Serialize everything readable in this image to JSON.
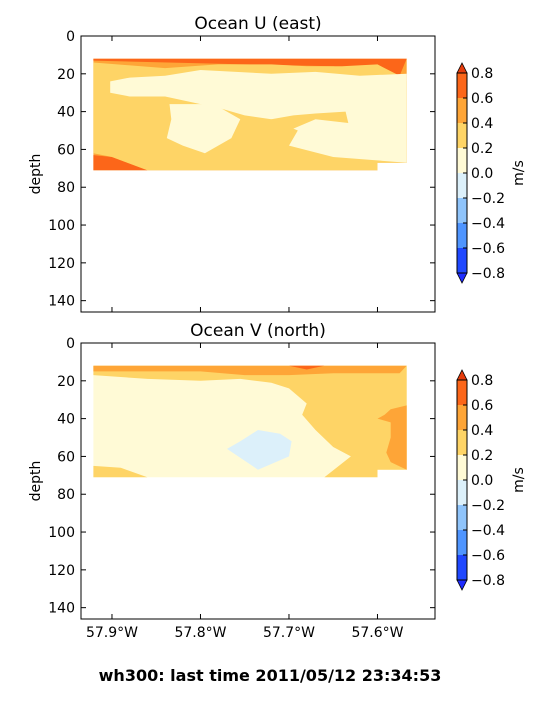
{
  "footer_title": "wh300: last time 2011/05/12 23:34:53",
  "chart_data": [
    {
      "type": "heatmap",
      "title": "Ocean U (east)",
      "ylabel": "depth",
      "colorbar_label": "m/s",
      "xlim": [
        -57.935,
        -57.535
      ],
      "ylim": [
        146,
        0
      ],
      "y_inverted": true,
      "x_ticks": [
        -57.9,
        -57.8,
        -57.7,
        -57.6
      ],
      "x_tick_labels": [
        "57.9°W",
        "57.8°W",
        "57.7°W",
        "57.6°W"
      ],
      "x_tick_labels_shown": false,
      "y_ticks": [
        0,
        20,
        40,
        60,
        80,
        100,
        120,
        140
      ],
      "y_tick_labels": [
        "0",
        "20",
        "40",
        "60",
        "80",
        "100",
        "120",
        "140"
      ],
      "data_extent": {
        "x": [
          -57.921,
          -57.567
        ],
        "depth": [
          12,
          71
        ]
      },
      "regions": [
        {
          "level": "0.4 to 0.6",
          "points": [
            [
              -57.921,
              12
            ],
            [
              -57.567,
              12
            ],
            [
              -57.567,
              67
            ],
            [
              -57.6,
              67
            ],
            [
              -57.6,
              71
            ],
            [
              -57.921,
              71
            ]
          ]
        },
        {
          "level": "0.6 to 0.8",
          "points": [
            [
              -57.921,
              12
            ],
            [
              -57.567,
              12
            ],
            [
              -57.575,
              21
            ],
            [
              -57.65,
              16
            ],
            [
              -57.75,
              15
            ],
            [
              -57.921,
              13
            ]
          ]
        },
        {
          "level": "0.6 to 0.8",
          "points": [
            [
              -57.921,
              63
            ],
            [
              -57.9,
              64
            ],
            [
              -57.86,
              71
            ],
            [
              -57.921,
              71
            ]
          ]
        },
        {
          "level": "0.2 to 0.4",
          "points": [
            [
              -57.921,
              14
            ],
            [
              -57.84,
              17
            ],
            [
              -57.78,
              15
            ],
            [
              -57.72,
              15
            ],
            [
              -57.68,
              16
            ],
            [
              -57.64,
              16
            ],
            [
              -57.6,
              15
            ],
            [
              -57.575,
              21
            ],
            [
              -57.567,
              24
            ],
            [
              -57.567,
              67
            ],
            [
              -57.6,
              67
            ],
            [
              -57.6,
              71
            ],
            [
              -57.86,
              71
            ],
            [
              -57.9,
              64
            ],
            [
              -57.921,
              62
            ]
          ]
        },
        {
          "level": "0.0 to 0.2",
          "points": [
            [
              -57.902,
              24
            ],
            [
              -57.88,
              22
            ],
            [
              -57.84,
              21
            ],
            [
              -57.8,
              18
            ],
            [
              -57.72,
              20
            ],
            [
              -57.67,
              19
            ],
            [
              -57.62,
              21
            ],
            [
              -57.567,
              20
            ],
            [
              -57.567,
              67
            ],
            [
              -57.65,
              64
            ],
            [
              -57.7,
              58
            ],
            [
              -57.69,
              50
            ],
            [
              -57.72,
              44
            ],
            [
              -57.75,
              42
            ],
            [
              -57.78,
              38
            ],
            [
              -57.8,
              36
            ],
            [
              -57.84,
              32
            ],
            [
              -57.88,
              32
            ],
            [
              -57.902,
              30
            ]
          ]
        },
        {
          "level": "0.0 to 0.2",
          "points": [
            [
              -57.835,
              36
            ],
            [
              -57.785,
              36
            ],
            [
              -57.755,
              44
            ],
            [
              -57.765,
              54
            ],
            [
              -57.795,
              62
            ],
            [
              -57.82,
              58
            ],
            [
              -57.838,
              54
            ],
            [
              -57.833,
              44
            ]
          ]
        },
        {
          "level": "0.2 to 0.4",
          "points": [
            [
              -57.72,
              44
            ],
            [
              -57.695,
              42
            ],
            [
              -57.67,
              41
            ],
            [
              -57.636,
              40
            ],
            [
              -57.633,
              46
            ],
            [
              -57.67,
              44
            ],
            [
              -57.7,
              50
            ],
            [
              -57.74,
              46
            ]
          ]
        }
      ]
    },
    {
      "type": "heatmap",
      "title": "Ocean V (north)",
      "ylabel": "depth",
      "colorbar_label": "m/s",
      "xlim": [
        -57.935,
        -57.535
      ],
      "ylim": [
        146,
        0
      ],
      "y_inverted": true,
      "x_ticks": [
        -57.9,
        -57.8,
        -57.7,
        -57.6
      ],
      "x_tick_labels": [
        "57.9°W",
        "57.8°W",
        "57.7°W",
        "57.6°W"
      ],
      "x_tick_labels_shown": true,
      "y_ticks": [
        0,
        20,
        40,
        60,
        80,
        100,
        120,
        140
      ],
      "y_tick_labels": [
        "0",
        "20",
        "40",
        "60",
        "80",
        "100",
        "120",
        "140"
      ],
      "data_extent": {
        "x": [
          -57.921,
          -57.567
        ],
        "depth": [
          12,
          71
        ]
      },
      "regions": [
        {
          "level": "0.0 to 0.2",
          "points": [
            [
              -57.921,
              12
            ],
            [
              -57.567,
              12
            ],
            [
              -57.567,
              67
            ],
            [
              -57.6,
              67
            ],
            [
              -57.6,
              71
            ],
            [
              -57.921,
              71
            ]
          ]
        },
        {
          "level": "0.2 to 0.4",
          "points": [
            [
              -57.921,
              12
            ],
            [
              -57.567,
              12
            ],
            [
              -57.567,
              67
            ],
            [
              -57.6,
              67
            ],
            [
              -57.6,
              71
            ],
            [
              -57.66,
              71
            ],
            [
              -57.63,
              60
            ],
            [
              -57.65,
              55
            ],
            [
              -57.67,
              46
            ],
            [
              -57.685,
              38
            ],
            [
              -57.68,
              32
            ],
            [
              -57.7,
              24
            ],
            [
              -57.72,
              21
            ],
            [
              -57.755,
              19
            ],
            [
              -57.8,
              20
            ],
            [
              -57.86,
              19
            ],
            [
              -57.921,
              17
            ]
          ]
        },
        {
          "level": "0.2 to 0.4",
          "points": [
            [
              -57.921,
              65
            ],
            [
              -57.89,
              66
            ],
            [
              -57.86,
              71
            ],
            [
              -57.921,
              71
            ]
          ]
        },
        {
          "level": "0.4 to 0.6",
          "points": [
            [
              -57.921,
              12
            ],
            [
              -57.567,
              12
            ],
            [
              -57.575,
              16
            ],
            [
              -57.65,
              16
            ],
            [
              -57.7,
              17
            ],
            [
              -57.75,
              17
            ],
            [
              -57.8,
              15
            ],
            [
              -57.921,
              15
            ]
          ]
        },
        {
          "level": "0.6 to 0.8",
          "points": [
            [
              -57.7,
              12
            ],
            [
              -57.66,
              12
            ],
            [
              -57.68,
              14
            ]
          ]
        },
        {
          "level": "0.4 to 0.6",
          "points": [
            [
              -57.567,
              33
            ],
            [
              -57.585,
              35
            ],
            [
              -57.592,
              38
            ],
            [
              -57.6,
              40
            ],
            [
              -57.585,
              42
            ],
            [
              -57.585,
              50
            ],
            [
              -57.59,
              58
            ],
            [
              -57.585,
              63
            ],
            [
              -57.567,
              67
            ]
          ]
        },
        {
          "level": "-0.2 to 0.0",
          "points": [
            [
              -57.755,
              52
            ],
            [
              -57.735,
              46
            ],
            [
              -57.71,
              48
            ],
            [
              -57.697,
              52
            ],
            [
              -57.7,
              60
            ],
            [
              -57.735,
              67
            ],
            [
              -57.77,
              56
            ]
          ]
        }
      ]
    }
  ],
  "colorbar": {
    "label": "m/s",
    "tick_values": [
      0.8,
      0.6,
      0.4,
      0.2,
      0.0,
      -0.2,
      -0.4,
      -0.6,
      -0.8
    ],
    "tick_labels": [
      "0.8",
      "0.6",
      "0.4",
      "0.2",
      "0.0",
      "−0.2",
      "−0.4",
      "−0.6",
      "−0.8"
    ],
    "levels": [
      "0.6 to 0.8",
      "0.4 to 0.6",
      "0.2 to 0.4",
      "0.0 to 0.2",
      "-0.2 to 0.0",
      "-0.4 to -0.2",
      "-0.6 to -0.4",
      "-0.8 to -0.6"
    ],
    "colors": [
      "#fc6619",
      "#fea537",
      "#fed466",
      "#fffad6",
      "#dcf0fa",
      "#8fc4fb",
      "#4f95ff",
      "#1f48ff"
    ],
    "extend_over_color": "#e63c0c",
    "extend_under_color": "#1e2cff"
  }
}
